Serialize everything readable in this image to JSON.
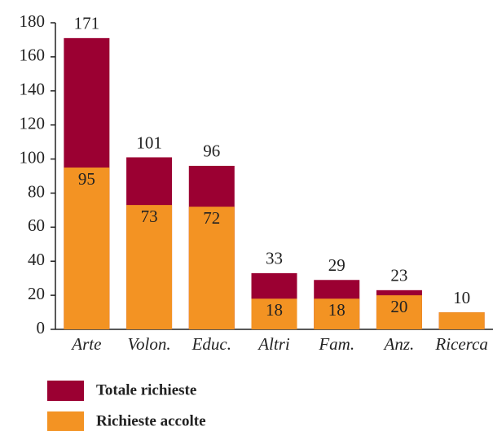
{
  "chart_data": {
    "type": "overlap-bar",
    "categories": [
      "Arte",
      "Volon.",
      "Educ.",
      "Altri",
      "Fam.",
      "Anz.",
      "Ricerca"
    ],
    "series": [
      {
        "name": "Totale richieste",
        "color": "#9b0032",
        "values": [
          171,
          101,
          96,
          33,
          29,
          23,
          10
        ]
      },
      {
        "name": "Richieste accolte",
        "color": "#f39323",
        "values": [
          95,
          73,
          72,
          18,
          18,
          20,
          10
        ],
        "value_labels": [
          "95",
          "73",
          "72",
          "18",
          "18",
          "20",
          null
        ]
      }
    ],
    "ylim": [
      0,
      180
    ],
    "yticks": [
      0,
      20,
      40,
      60,
      80,
      100,
      120,
      140,
      160,
      180
    ],
    "grid": false,
    "legend": "bottom-left"
  }
}
